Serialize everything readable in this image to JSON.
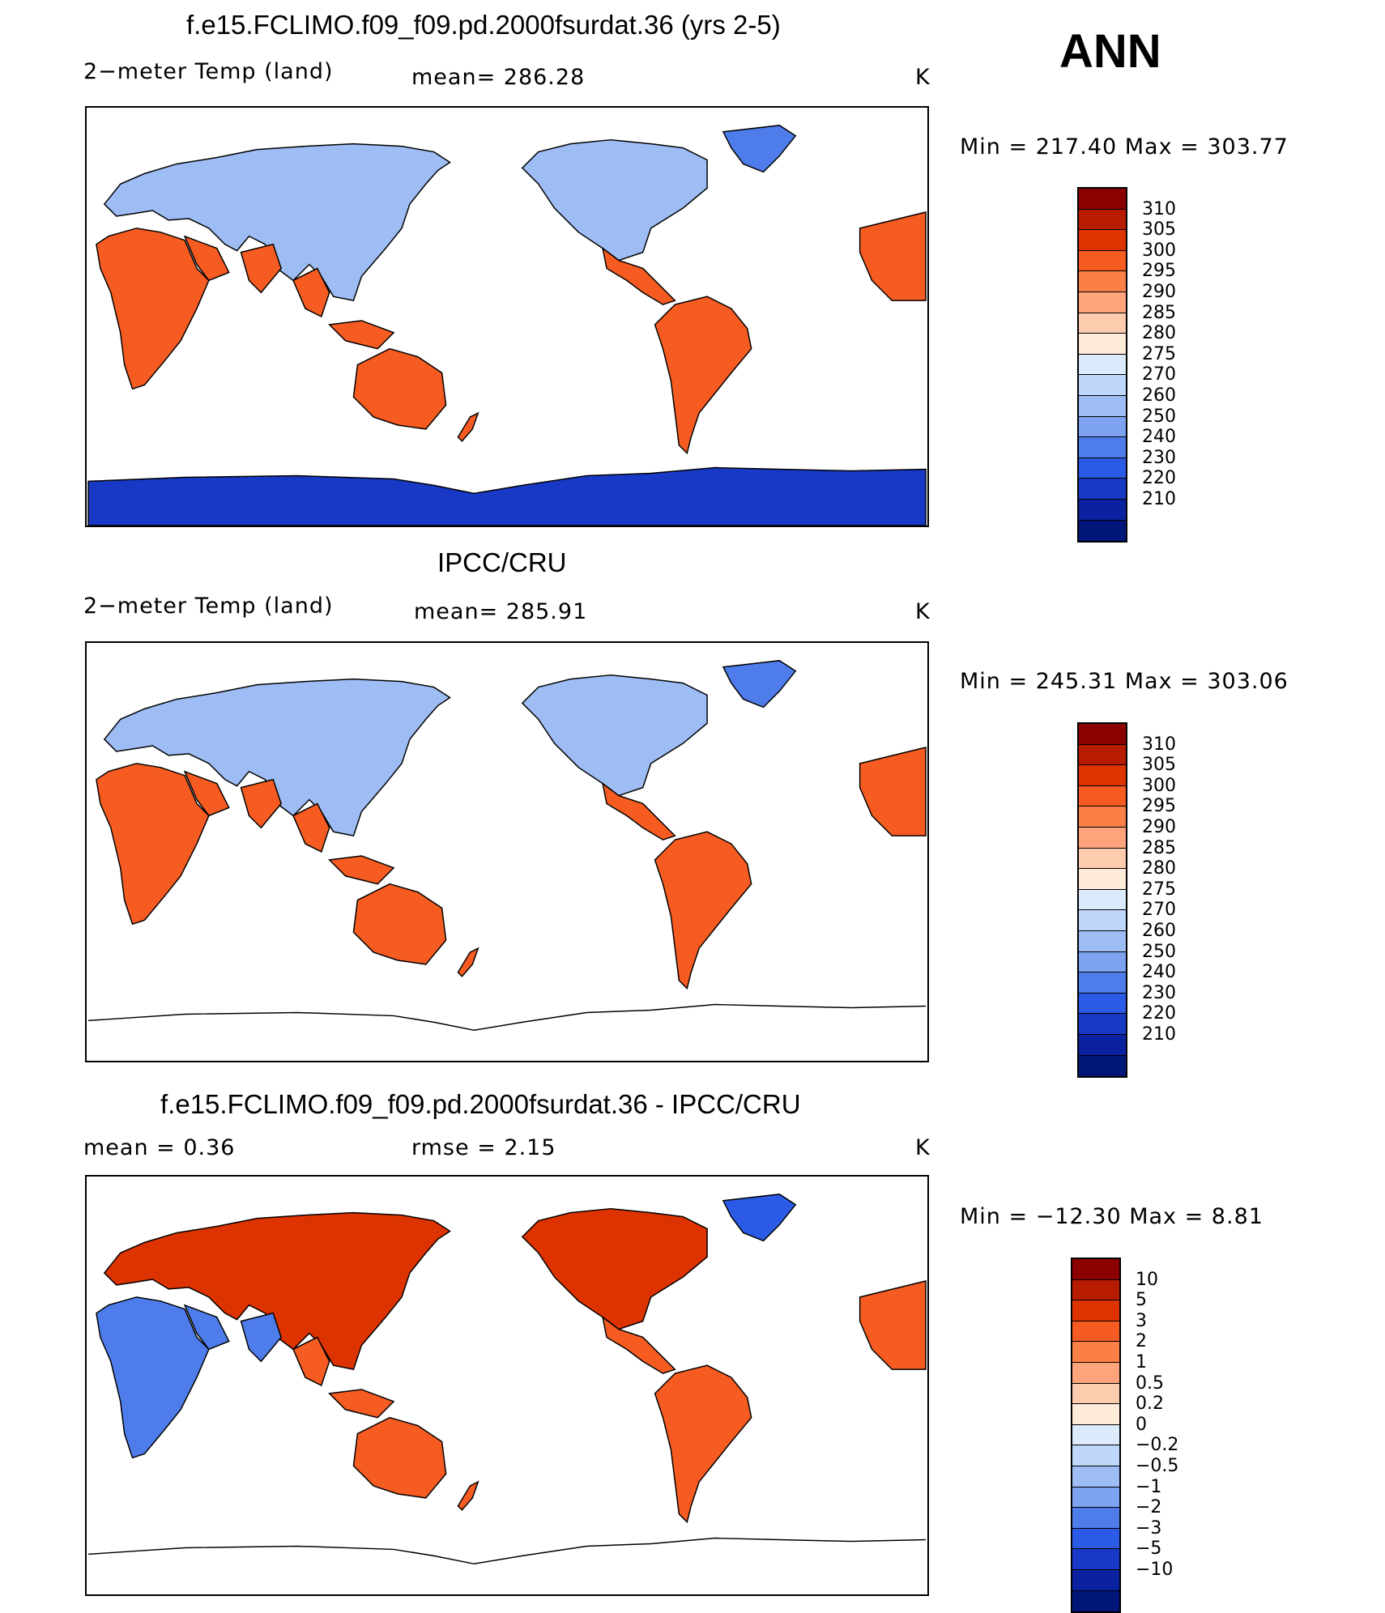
{
  "season": "ANN",
  "colorbar_colors_temp": [
    "#8B0000",
    "#B81C00",
    "#DD3300",
    "#F65C22",
    "#FA8048",
    "#FDA47C",
    "#FDCBAD",
    "#FEEBDA",
    "#DCEBFB",
    "#BFD7FA",
    "#9EBDF5",
    "#7DA2F0",
    "#4E7DEB",
    "#2B5BE6",
    "#1739C6",
    "#0A22A0",
    "#001679"
  ],
  "colorbar_colors_diff": [
    "#8B0000",
    "#B81C00",
    "#DD3300",
    "#F65C22",
    "#FA8048",
    "#FDA47C",
    "#FDCBAD",
    "#FEEBDA",
    "#DCEBFB",
    "#BFD7FA",
    "#9EBDF5",
    "#7DA2F0",
    "#4E7DEB",
    "#2B5BE6",
    "#1739C6",
    "#0A22A0",
    "#001679"
  ],
  "panels": [
    {
      "title": "f.e15.FCLIMO.f09_f09.pd.2000fsurdat.36 (yrs 2-5)",
      "left_label": "2−meter Temp (land)",
      "center_label": "mean=  286.28",
      "units": "K",
      "minmax": "Min  =  217.40  Max  =  303.77",
      "levels": [
        "310",
        "305",
        "300",
        "295",
        "290",
        "285",
        "280",
        "275",
        "270",
        "260",
        "250",
        "240",
        "230",
        "220",
        "210"
      ],
      "has_antarctica": true,
      "diff": false
    },
    {
      "title": "IPCC/CRU",
      "left_label": "2−meter Temp (land)",
      "center_label": "mean=  285.91",
      "units": "K",
      "minmax": "Min  =  245.31  Max  =  303.06",
      "levels": [
        "310",
        "305",
        "300",
        "295",
        "290",
        "285",
        "280",
        "275",
        "270",
        "260",
        "250",
        "240",
        "230",
        "220",
        "210"
      ],
      "has_antarctica": false,
      "diff": false
    },
    {
      "title": "f.e15.FCLIMO.f09_f09.pd.2000fsurdat.36 - IPCC/CRU",
      "left_label": "mean  =      0.36",
      "center_label": "rmse  =      2.15",
      "units": "K",
      "minmax": "Min  =  −12.30  Max  =      8.81",
      "levels": [
        "10",
        "5",
        "3",
        "2",
        "1",
        "0.5",
        "0.2",
        "0",
        "−0.2",
        "−0.5",
        "−1",
        "−2",
        "−3",
        "−5",
        "−10"
      ],
      "has_antarctica": false,
      "diff": true
    }
  ]
}
